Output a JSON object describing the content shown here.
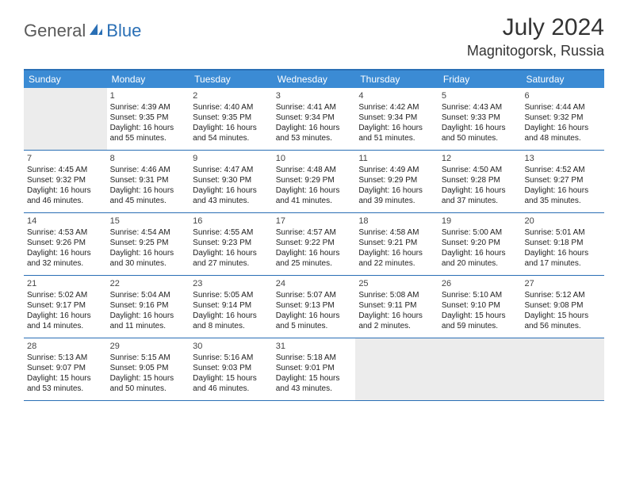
{
  "logo": {
    "part1": "General",
    "part2": "Blue"
  },
  "title": "July 2024",
  "location": "Magnitogorsk, Russia",
  "colors": {
    "header_bg": "#3b8bd4",
    "border": "#2a6fb5",
    "empty_bg": "#ececec",
    "logo_gray": "#5a5a5a",
    "logo_blue": "#2a6fb5"
  },
  "dayNames": [
    "Sunday",
    "Monday",
    "Tuesday",
    "Wednesday",
    "Thursday",
    "Friday",
    "Saturday"
  ],
  "weeks": [
    [
      null,
      {
        "n": "1",
        "sr": "Sunrise: 4:39 AM",
        "ss": "Sunset: 9:35 PM",
        "d1": "Daylight: 16 hours",
        "d2": "and 55 minutes."
      },
      {
        "n": "2",
        "sr": "Sunrise: 4:40 AM",
        "ss": "Sunset: 9:35 PM",
        "d1": "Daylight: 16 hours",
        "d2": "and 54 minutes."
      },
      {
        "n": "3",
        "sr": "Sunrise: 4:41 AM",
        "ss": "Sunset: 9:34 PM",
        "d1": "Daylight: 16 hours",
        "d2": "and 53 minutes."
      },
      {
        "n": "4",
        "sr": "Sunrise: 4:42 AM",
        "ss": "Sunset: 9:34 PM",
        "d1": "Daylight: 16 hours",
        "d2": "and 51 minutes."
      },
      {
        "n": "5",
        "sr": "Sunrise: 4:43 AM",
        "ss": "Sunset: 9:33 PM",
        "d1": "Daylight: 16 hours",
        "d2": "and 50 minutes."
      },
      {
        "n": "6",
        "sr": "Sunrise: 4:44 AM",
        "ss": "Sunset: 9:32 PM",
        "d1": "Daylight: 16 hours",
        "d2": "and 48 minutes."
      }
    ],
    [
      {
        "n": "7",
        "sr": "Sunrise: 4:45 AM",
        "ss": "Sunset: 9:32 PM",
        "d1": "Daylight: 16 hours",
        "d2": "and 46 minutes."
      },
      {
        "n": "8",
        "sr": "Sunrise: 4:46 AM",
        "ss": "Sunset: 9:31 PM",
        "d1": "Daylight: 16 hours",
        "d2": "and 45 minutes."
      },
      {
        "n": "9",
        "sr": "Sunrise: 4:47 AM",
        "ss": "Sunset: 9:30 PM",
        "d1": "Daylight: 16 hours",
        "d2": "and 43 minutes."
      },
      {
        "n": "10",
        "sr": "Sunrise: 4:48 AM",
        "ss": "Sunset: 9:29 PM",
        "d1": "Daylight: 16 hours",
        "d2": "and 41 minutes."
      },
      {
        "n": "11",
        "sr": "Sunrise: 4:49 AM",
        "ss": "Sunset: 9:29 PM",
        "d1": "Daylight: 16 hours",
        "d2": "and 39 minutes."
      },
      {
        "n": "12",
        "sr": "Sunrise: 4:50 AM",
        "ss": "Sunset: 9:28 PM",
        "d1": "Daylight: 16 hours",
        "d2": "and 37 minutes."
      },
      {
        "n": "13",
        "sr": "Sunrise: 4:52 AM",
        "ss": "Sunset: 9:27 PM",
        "d1": "Daylight: 16 hours",
        "d2": "and 35 minutes."
      }
    ],
    [
      {
        "n": "14",
        "sr": "Sunrise: 4:53 AM",
        "ss": "Sunset: 9:26 PM",
        "d1": "Daylight: 16 hours",
        "d2": "and 32 minutes."
      },
      {
        "n": "15",
        "sr": "Sunrise: 4:54 AM",
        "ss": "Sunset: 9:25 PM",
        "d1": "Daylight: 16 hours",
        "d2": "and 30 minutes."
      },
      {
        "n": "16",
        "sr": "Sunrise: 4:55 AM",
        "ss": "Sunset: 9:23 PM",
        "d1": "Daylight: 16 hours",
        "d2": "and 27 minutes."
      },
      {
        "n": "17",
        "sr": "Sunrise: 4:57 AM",
        "ss": "Sunset: 9:22 PM",
        "d1": "Daylight: 16 hours",
        "d2": "and 25 minutes."
      },
      {
        "n": "18",
        "sr": "Sunrise: 4:58 AM",
        "ss": "Sunset: 9:21 PM",
        "d1": "Daylight: 16 hours",
        "d2": "and 22 minutes."
      },
      {
        "n": "19",
        "sr": "Sunrise: 5:00 AM",
        "ss": "Sunset: 9:20 PM",
        "d1": "Daylight: 16 hours",
        "d2": "and 20 minutes."
      },
      {
        "n": "20",
        "sr": "Sunrise: 5:01 AM",
        "ss": "Sunset: 9:18 PM",
        "d1": "Daylight: 16 hours",
        "d2": "and 17 minutes."
      }
    ],
    [
      {
        "n": "21",
        "sr": "Sunrise: 5:02 AM",
        "ss": "Sunset: 9:17 PM",
        "d1": "Daylight: 16 hours",
        "d2": "and 14 minutes."
      },
      {
        "n": "22",
        "sr": "Sunrise: 5:04 AM",
        "ss": "Sunset: 9:16 PM",
        "d1": "Daylight: 16 hours",
        "d2": "and 11 minutes."
      },
      {
        "n": "23",
        "sr": "Sunrise: 5:05 AM",
        "ss": "Sunset: 9:14 PM",
        "d1": "Daylight: 16 hours",
        "d2": "and 8 minutes."
      },
      {
        "n": "24",
        "sr": "Sunrise: 5:07 AM",
        "ss": "Sunset: 9:13 PM",
        "d1": "Daylight: 16 hours",
        "d2": "and 5 minutes."
      },
      {
        "n": "25",
        "sr": "Sunrise: 5:08 AM",
        "ss": "Sunset: 9:11 PM",
        "d1": "Daylight: 16 hours",
        "d2": "and 2 minutes."
      },
      {
        "n": "26",
        "sr": "Sunrise: 5:10 AM",
        "ss": "Sunset: 9:10 PM",
        "d1": "Daylight: 15 hours",
        "d2": "and 59 minutes."
      },
      {
        "n": "27",
        "sr": "Sunrise: 5:12 AM",
        "ss": "Sunset: 9:08 PM",
        "d1": "Daylight: 15 hours",
        "d2": "and 56 minutes."
      }
    ],
    [
      {
        "n": "28",
        "sr": "Sunrise: 5:13 AM",
        "ss": "Sunset: 9:07 PM",
        "d1": "Daylight: 15 hours",
        "d2": "and 53 minutes."
      },
      {
        "n": "29",
        "sr": "Sunrise: 5:15 AM",
        "ss": "Sunset: 9:05 PM",
        "d1": "Daylight: 15 hours",
        "d2": "and 50 minutes."
      },
      {
        "n": "30",
        "sr": "Sunrise: 5:16 AM",
        "ss": "Sunset: 9:03 PM",
        "d1": "Daylight: 15 hours",
        "d2": "and 46 minutes."
      },
      {
        "n": "31",
        "sr": "Sunrise: 5:18 AM",
        "ss": "Sunset: 9:01 PM",
        "d1": "Daylight: 15 hours",
        "d2": "and 43 minutes."
      },
      null,
      null,
      null
    ]
  ]
}
